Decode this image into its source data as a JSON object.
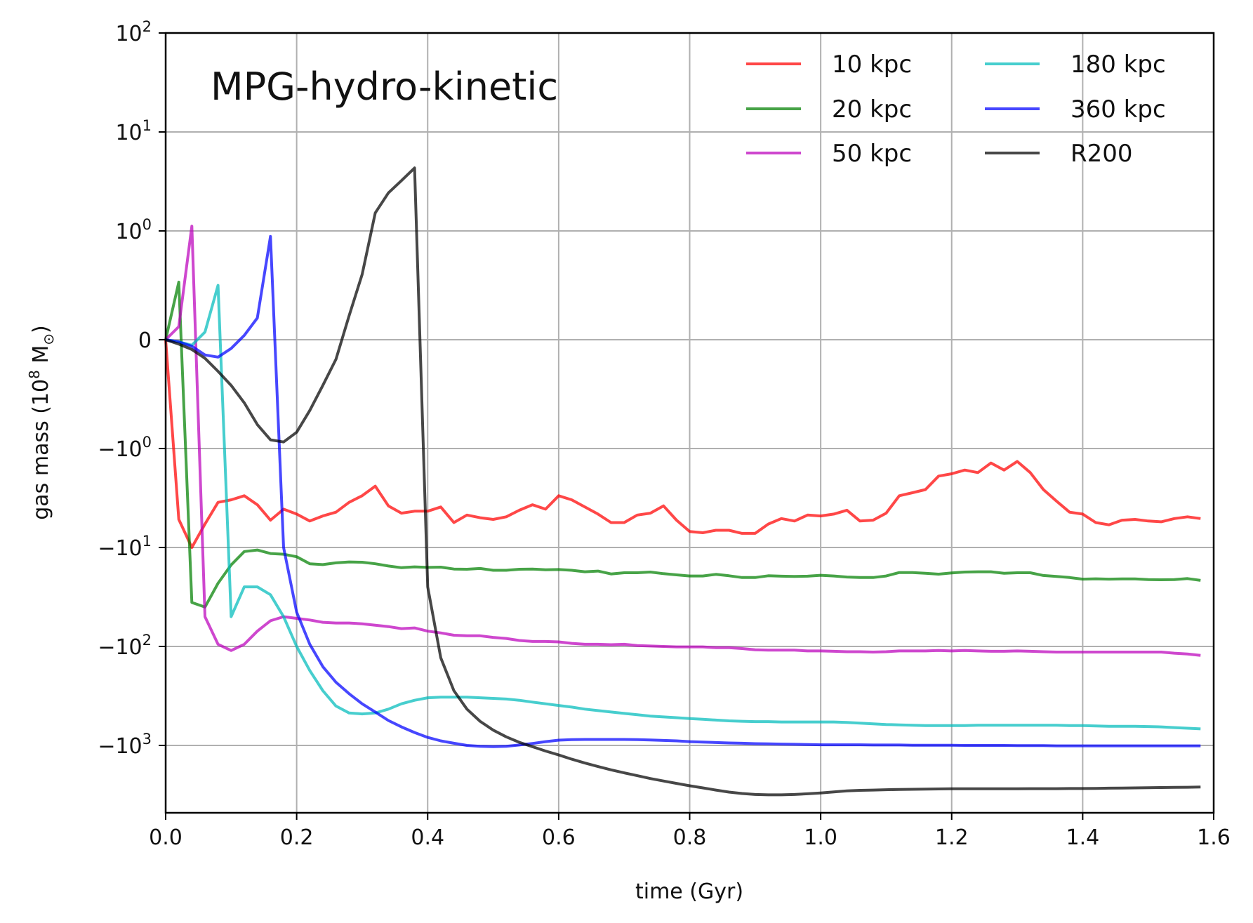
{
  "chart_data": {
    "type": "line",
    "title": "MPG-hydro-kinetic",
    "xlabel": "time (Gyr)",
    "ylabel": {
      "pre": "gas mass (10",
      "sup": "8",
      "post": " M",
      "sub": "⊙",
      "close": ")"
    },
    "xlim": [
      0,
      1.6
    ],
    "x_ticks": [
      {
        "v": 0.0,
        "label": "0.0"
      },
      {
        "v": 0.2,
        "label": "0.2"
      },
      {
        "v": 0.4,
        "label": "0.4"
      },
      {
        "v": 0.6,
        "label": "0.6"
      },
      {
        "v": 0.8,
        "label": "0.8"
      },
      {
        "v": 1.0,
        "label": "1.0"
      },
      {
        "v": 1.2,
        "label": "1.2"
      },
      {
        "v": 1.4,
        "label": "1.4"
      },
      {
        "v": 1.6,
        "label": "1.6"
      }
    ],
    "y_scale": "symlog",
    "ylim": [
      -5000,
      100
    ],
    "y_ticks": [
      {
        "v": 100,
        "base": "10",
        "exp": "2"
      },
      {
        "v": 10,
        "base": "10",
        "exp": "1"
      },
      {
        "v": 1,
        "base": "10",
        "exp": "0"
      },
      {
        "v": 0,
        "base": "0",
        "exp": ""
      },
      {
        "v": -1,
        "base": "−10",
        "exp": "0"
      },
      {
        "v": -10,
        "base": "−10",
        "exp": "1"
      },
      {
        "v": -100,
        "base": "−10",
        "exp": "2"
      },
      {
        "v": -1000,
        "base": "−10",
        "exp": "3"
      }
    ],
    "grid": true,
    "legend_position": "top-right",
    "x": [
      0.0,
      0.02,
      0.04,
      0.06,
      0.08,
      0.1,
      0.12,
      0.14,
      0.16,
      0.18,
      0.2,
      0.22,
      0.24,
      0.26,
      0.28,
      0.3,
      0.32,
      0.34,
      0.36,
      0.38,
      0.4,
      0.42,
      0.44,
      0.46,
      0.48,
      0.5,
      0.52,
      0.54,
      0.56,
      0.58,
      0.6,
      0.62,
      0.64,
      0.66,
      0.68,
      0.7,
      0.72,
      0.74,
      0.76,
      0.78,
      0.8,
      0.82,
      0.84,
      0.86,
      0.88,
      0.9,
      0.92,
      0.94,
      0.96,
      0.98,
      1.0,
      1.02,
      1.04,
      1.06,
      1.08,
      1.1,
      1.12,
      1.14,
      1.16,
      1.18,
      1.2,
      1.22,
      1.24,
      1.26,
      1.28,
      1.3,
      1.32,
      1.34,
      1.36,
      1.38,
      1.4,
      1.42,
      1.44,
      1.46,
      1.48,
      1.5,
      1.52,
      1.54,
      1.56,
      1.58
    ],
    "series": [
      {
        "name": "10 kpc",
        "color": "#ff0000",
        "values": [
          0,
          -5.2,
          -10,
          -5.8,
          -3.5,
          -3.3,
          -3.0,
          -3.7,
          -5.3,
          -4.1,
          -4.6,
          -5.4,
          -4.8,
          -4.4,
          -3.5,
          -3.0,
          -2.4,
          -3.8,
          -4.5,
          -4.3,
          -4.3,
          -3.9,
          -5.6,
          -4.7,
          -5.0,
          -5.2,
          -4.9,
          -4.2,
          -3.7,
          -4.1,
          -3.0,
          -3.3,
          -3.9,
          -4.6,
          -5.6,
          -5.6,
          -4.7,
          -4.5,
          -3.8,
          -5.3,
          -6.9,
          -7.1,
          -6.7,
          -6.7,
          -7.2,
          -7.2,
          -5.8,
          -5.1,
          -5.4,
          -4.7,
          -4.8,
          -4.6,
          -4.2,
          -5.4,
          -5.3,
          -4.5,
          -3.0,
          -2.8,
          -2.6,
          -1.9,
          -1.8,
          -1.65,
          -1.75,
          -1.4,
          -1.65,
          -1.35,
          -1.75,
          -2.6,
          -3.4,
          -4.4,
          -4.6,
          -5.6,
          -5.9,
          -5.3,
          -5.2,
          -5.4,
          -5.5,
          -5.1,
          -4.9,
          -5.1
        ]
      },
      {
        "name": "20 kpc",
        "color": "#008000",
        "values": [
          0,
          0.53,
          -36,
          -40,
          -23,
          -15,
          -11.0,
          -10.6,
          -11.5,
          -11.7,
          -12.4,
          -14.6,
          -14.9,
          -14.3,
          -14.0,
          -14.1,
          -14.6,
          -15.4,
          -16.0,
          -15.7,
          -15.9,
          -15.8,
          -16.5,
          -16.6,
          -16.3,
          -17.0,
          -17.0,
          -16.6,
          -16.5,
          -16.8,
          -16.7,
          -17.0,
          -17.6,
          -17.3,
          -18.5,
          -18.0,
          -18.0,
          -17.7,
          -18.4,
          -18.9,
          -19.4,
          -19.4,
          -18.7,
          -19.3,
          -20.1,
          -20.1,
          -19.3,
          -19.5,
          -19.6,
          -19.5,
          -19.1,
          -19.4,
          -19.9,
          -20.1,
          -20.1,
          -19.4,
          -17.9,
          -17.9,
          -18.2,
          -18.6,
          -18.1,
          -17.7,
          -17.6,
          -17.6,
          -18.2,
          -18.0,
          -18.0,
          -19.2,
          -19.6,
          -20.1,
          -20.9,
          -20.7,
          -20.9,
          -20.8,
          -20.8,
          -21.1,
          -21.2,
          -21.1,
          -20.6,
          -21.5
        ]
      },
      {
        "name": "50 kpc",
        "color": "#bb00bb",
        "values": [
          0,
          0.12,
          1.1,
          -50,
          -95,
          -110,
          -95,
          -70,
          -55,
          -50,
          -52,
          -54,
          -57,
          -58,
          -58,
          -59,
          -61,
          -63,
          -66,
          -65,
          -70,
          -73,
          -77,
          -78,
          -78,
          -81,
          -83,
          -87,
          -89,
          -89,
          -90,
          -93,
          -95,
          -95,
          -96,
          -95,
          -98,
          -99,
          -100,
          -101,
          -101,
          -101,
          -103,
          -103,
          -105,
          -108,
          -109,
          -109,
          -109,
          -111,
          -111,
          -112,
          -113,
          -113,
          -114,
          -113,
          -111,
          -111,
          -111,
          -110,
          -111,
          -110,
          -111,
          -112,
          -112,
          -111,
          -112,
          -113,
          -114,
          -114,
          -114,
          -114,
          -114,
          -114,
          -114,
          -114,
          -114,
          -117,
          -119,
          -123
        ]
      },
      {
        "name": "180 kpc",
        "color": "#00bbbb",
        "values": [
          0,
          -0.02,
          -0.05,
          0.07,
          0.5,
          -50,
          -25,
          -25,
          -30,
          -50,
          -100,
          -175,
          -280,
          -400,
          -470,
          -480,
          -470,
          -430,
          -380,
          -350,
          -330,
          -325,
          -325,
          -325,
          -330,
          -335,
          -340,
          -350,
          -365,
          -380,
          -395,
          -410,
          -430,
          -445,
          -460,
          -475,
          -490,
          -505,
          -515,
          -525,
          -535,
          -545,
          -555,
          -565,
          -570,
          -575,
          -575,
          -580,
          -580,
          -580,
          -580,
          -580,
          -585,
          -595,
          -605,
          -615,
          -620,
          -625,
          -630,
          -630,
          -630,
          -630,
          -625,
          -625,
          -625,
          -625,
          -625,
          -625,
          -625,
          -630,
          -630,
          -635,
          -640,
          -640,
          -640,
          -645,
          -650,
          -660,
          -670,
          -680
        ]
      },
      {
        "name": "360 kpc",
        "color": "#0000ff",
        "values": [
          0,
          -0.02,
          -0.06,
          -0.14,
          -0.16,
          -0.08,
          0.04,
          0.2,
          0.95,
          -10,
          -45,
          -95,
          -160,
          -230,
          -300,
          -380,
          -460,
          -560,
          -650,
          -740,
          -830,
          -900,
          -950,
          -1000,
          -1020,
          -1030,
          -1020,
          -990,
          -955,
          -915,
          -885,
          -875,
          -870,
          -870,
          -870,
          -870,
          -875,
          -880,
          -890,
          -900,
          -915,
          -925,
          -935,
          -945,
          -950,
          -960,
          -965,
          -970,
          -975,
          -980,
          -985,
          -985,
          -985,
          -985,
          -990,
          -990,
          -990,
          -995,
          -995,
          -995,
          -995,
          -1000,
          -1000,
          -1000,
          -1000,
          -1005,
          -1005,
          -1005,
          -1010,
          -1010,
          -1010,
          -1010,
          -1010,
          -1010,
          -1010,
          -1010,
          -1010,
          -1010,
          -1010,
          -1010
        ]
      },
      {
        "name": "R200",
        "color": "#000000",
        "values": [
          0,
          -0.04,
          -0.09,
          -0.17,
          -0.29,
          -0.42,
          -0.58,
          -0.78,
          -0.92,
          -0.94,
          -0.85,
          -0.65,
          -0.42,
          -0.18,
          0.22,
          0.6,
          1.5,
          2.4,
          3.2,
          4.3,
          -25,
          -130,
          -280,
          -430,
          -570,
          -700,
          -820,
          -930,
          -1030,
          -1140,
          -1250,
          -1380,
          -1510,
          -1640,
          -1770,
          -1900,
          -2030,
          -2170,
          -2300,
          -2430,
          -2570,
          -2700,
          -2840,
          -2980,
          -3080,
          -3150,
          -3180,
          -3180,
          -3150,
          -3100,
          -3040,
          -2970,
          -2900,
          -2860,
          -2840,
          -2820,
          -2800,
          -2790,
          -2780,
          -2770,
          -2760,
          -2760,
          -2760,
          -2760,
          -2760,
          -2760,
          -2750,
          -2750,
          -2750,
          -2740,
          -2740,
          -2730,
          -2720,
          -2710,
          -2700,
          -2690,
          -2680,
          -2670,
          -2660,
          -2650
        ]
      }
    ]
  }
}
